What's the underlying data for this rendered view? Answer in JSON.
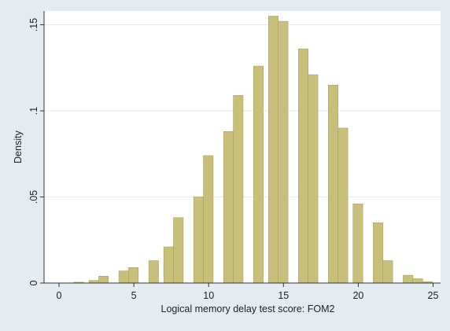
{
  "chart_data": {
    "type": "bar",
    "bar_color": "#c8c07a",
    "bar_edge_color": "#a9a35f",
    "plot_background": "#ffffff",
    "page_background": "#e5ecf1",
    "grid": true,
    "xlabel": "Logical memory delay test score: FOM2",
    "ylabel": "Density",
    "xlim": [
      -1,
      25.5
    ],
    "ylim": [
      0,
      0.158
    ],
    "x_ticks": [
      0,
      5,
      10,
      15,
      20,
      25
    ],
    "x_tick_labels": [
      "0",
      "5",
      "10",
      "15",
      "20",
      "25"
    ],
    "y_ticks": [
      0,
      0.05,
      0.1,
      0.15
    ],
    "y_tick_labels": [
      "0",
      ".05",
      ".1",
      ".15"
    ],
    "bin_width": 0.65,
    "bins": [
      {
        "x": 1,
        "value": 0.0005
      },
      {
        "x": 2,
        "value": 0.0015
      },
      {
        "x": 2.65,
        "value": 0.004
      },
      {
        "x": 4,
        "value": 0.007
      },
      {
        "x": 4.65,
        "value": 0.009
      },
      {
        "x": 6,
        "value": 0.013
      },
      {
        "x": 7,
        "value": 0.021
      },
      {
        "x": 7.65,
        "value": 0.038
      },
      {
        "x": 9,
        "value": 0.05
      },
      {
        "x": 9.65,
        "value": 0.074
      },
      {
        "x": 11,
        "value": 0.088
      },
      {
        "x": 11.65,
        "value": 0.109
      },
      {
        "x": 13,
        "value": 0.126
      },
      {
        "x": 14,
        "value": 0.155
      },
      {
        "x": 14.65,
        "value": 0.152
      },
      {
        "x": 16,
        "value": 0.136
      },
      {
        "x": 16.65,
        "value": 0.121
      },
      {
        "x": 18,
        "value": 0.115
      },
      {
        "x": 18.65,
        "value": 0.09
      },
      {
        "x": 19.65,
        "value": 0.046
      },
      {
        "x": 21,
        "value": 0.035
      },
      {
        "x": 21.65,
        "value": 0.013
      },
      {
        "x": 23,
        "value": 0.0045
      },
      {
        "x": 23.65,
        "value": 0.0025
      },
      {
        "x": 24.3,
        "value": 0.0008
      }
    ]
  }
}
